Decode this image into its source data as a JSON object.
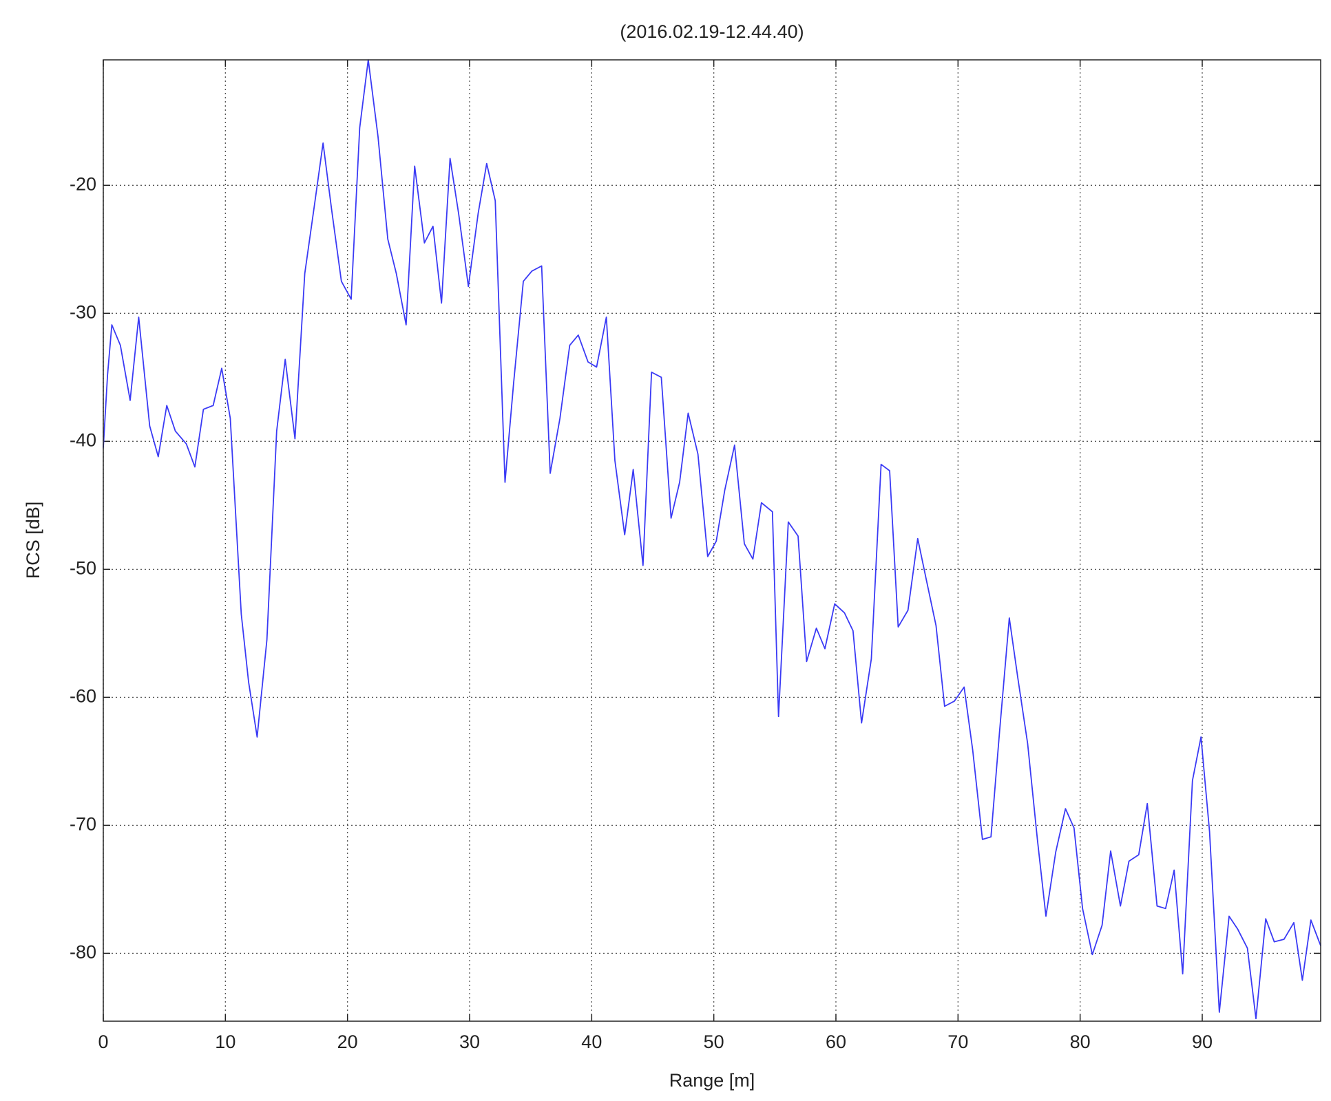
{
  "chart_data": {
    "type": "line",
    "title": "(2016.02.19-12.44.40)",
    "x_label": "Range [m]",
    "y_label": "RCS [dB]",
    "x": [
      0,
      0.35,
      0.7,
      1.4,
      2.2,
      2.9,
      3.8,
      4.5,
      5.2,
      5.9,
      6.8,
      7.5,
      8.2,
      9,
      9.7,
      10.4,
      11.3,
      11.9,
      12.6,
      13.4,
      14.2,
      14.9,
      15.7,
      16.5,
      17.3,
      18,
      18.7,
      19.5,
      20.3,
      21,
      21.7,
      22.5,
      23.3,
      24,
      24.8,
      25.5,
      26.3,
      27,
      27.7,
      28.4,
      29.1,
      29.9,
      30.7,
      31.4,
      32.1,
      32.9,
      33.6,
      34.4,
      35.1,
      35.9,
      36.6,
      37.4,
      38.2,
      38.9,
      39.7,
      40.4,
      41.2,
      41.9,
      42.7,
      43.4,
      44.2,
      44.9,
      45.7,
      46.5,
      47.2,
      47.9,
      48.7,
      49.5,
      50.2,
      50.9,
      51.7,
      52.5,
      53.2,
      53.9,
      54.8,
      55.3,
      56.1,
      56.9,
      57.6,
      58.4,
      59.1,
      59.9,
      60.7,
      61.4,
      62.1,
      62.9,
      63.7,
      64.4,
      65.1,
      65.9,
      66.7,
      67.4,
      68.2,
      68.9,
      69.7,
      70.5,
      71.2,
      72,
      72.7,
      73.4,
      74.2,
      74.9,
      75.7,
      76.5,
      77.2,
      78,
      78.8,
      79.5,
      80.2,
      81,
      81.8,
      82.5,
      83.3,
      84,
      84.8,
      85.5,
      86.3,
      87,
      87.7,
      88.4,
      89.2,
      89.9,
      90.6,
      91.4,
      92.2,
      92.9,
      93.7,
      94.4,
      95.2,
      95.9,
      96.7,
      97.5,
      98.2,
      98.9,
      99.7
    ],
    "series": [
      {
        "name": "RCS",
        "color": "#3a3af5",
        "values": [
          -40.5,
          -34.8,
          -30.9,
          -32.5,
          -36.8,
          -30.3,
          -38.8,
          -41.2,
          -37.2,
          -39.2,
          -40.2,
          -42,
          -37.5,
          -37.2,
          -34.3,
          -38.2,
          -53.5,
          -58.8,
          -63.1,
          -55.5,
          -39.2,
          -33.6,
          -39.8,
          -26.9,
          -21.5,
          -16.7,
          -21.9,
          -27.5,
          -28.9,
          -15.5,
          -10.2,
          -16.2,
          -24.2,
          -26.9,
          -30.9,
          -18.5,
          -24.5,
          -23.2,
          -29.2,
          -17.9,
          -22.2,
          -27.9,
          -22.2,
          -18.3,
          -21.2,
          -43.2,
          -35.5,
          -27.5,
          -26.7,
          -26.3,
          -42.5,
          -38.2,
          -32.5,
          -31.7,
          -33.8,
          -34.2,
          -30.3,
          -41.5,
          -47.3,
          -42.2,
          -49.7,
          -34.6,
          -35,
          -46,
          -43.2,
          -37.8,
          -41,
          -49,
          -47.8,
          -43.8,
          -40.3,
          -48,
          -49.2,
          -44.8,
          -45.5,
          -61.5,
          -46.3,
          -47.4,
          -57.2,
          -54.6,
          -56.2,
          -52.7,
          -53.4,
          -54.8,
          -62,
          -57,
          -41.8,
          -42.3,
          -54.5,
          -53.2,
          -47.6,
          -50.8,
          -54.4,
          -60.7,
          -60.3,
          -59.2,
          -64.1,
          -71.1,
          -70.9,
          -62.7,
          -53.8,
          -58.5,
          -63.6,
          -71.1,
          -77.1,
          -72.1,
          -68.7,
          -70.2,
          -76.5,
          -80.1,
          -77.8,
          -72,
          -76.3,
          -72.8,
          -72.3,
          -68.3,
          -76.3,
          -76.5,
          -73.5,
          -81.6,
          -66.5,
          -63.1,
          -70.5,
          -84.6,
          -77.1,
          -78.1,
          -79.6,
          -85.1,
          -77.3,
          -79.1,
          -78.9,
          -77.6,
          -82.1,
          -77.4,
          -79.4
        ]
      }
    ],
    "xlim": [
      0,
      99.7
    ],
    "xticks": [
      0,
      10,
      20,
      30,
      40,
      50,
      60,
      70,
      80,
      90
    ],
    "ylim": [
      -85.3,
      -10.2
    ],
    "yticks": [
      -80,
      -70,
      -60,
      -50,
      -40,
      -30,
      -20
    ],
    "grid": true
  }
}
